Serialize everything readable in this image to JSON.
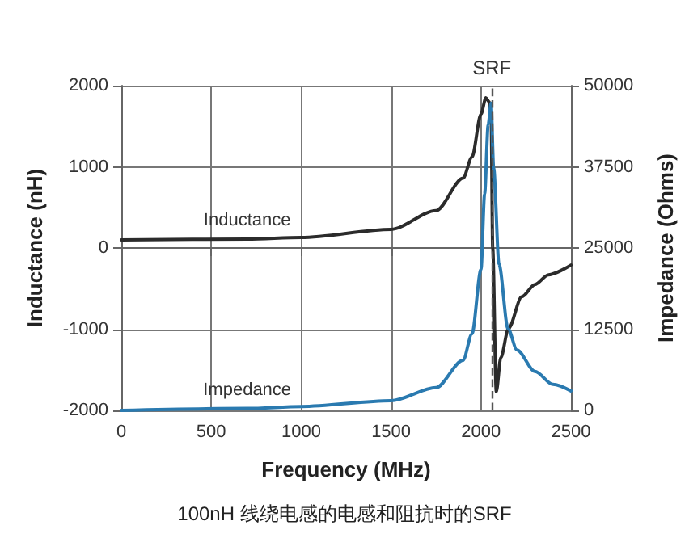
{
  "chart_data": {
    "type": "line",
    "title": "100nH 线绕电感的电感和阻抗时的SRF",
    "xlabel": "Frequency (MHz)",
    "ylabel": "Inductance (nH)",
    "y2label": "Impedance (Ohms)",
    "xlim": [
      0,
      2500
    ],
    "xticks": [
      0,
      500,
      1000,
      1500,
      2000,
      2500
    ],
    "ylim": [
      -2000,
      2000
    ],
    "yticks": [
      -2000,
      -1000,
      0,
      1000,
      2000
    ],
    "y2lim": [
      0,
      50000
    ],
    "y2ticks": [
      0,
      12500,
      25000,
      37500,
      50000
    ],
    "grid": true,
    "legend": false,
    "marker": "none",
    "line_style": "solid",
    "ref_lines": [
      {
        "axis": "x",
        "value": 2060,
        "label": "SRF",
        "line_style": "dashed",
        "color": "#555555"
      }
    ],
    "series": [
      {
        "name": "Inductance",
        "color": "#2b2b2b",
        "x": [
          0,
          700,
          1000,
          1500,
          1750,
          1900,
          1950,
          2000,
          2027,
          2045,
          2056,
          2065,
          2085,
          2110,
          2153,
          2227,
          2300,
          2375,
          2500
        ],
        "values": [
          100,
          110,
          130,
          230,
          460,
          860,
          1120,
          1650,
          1850,
          1800,
          1650,
          0,
          -1770,
          -1350,
          -990,
          -600,
          -450,
          -330,
          -210
        ]
      },
      {
        "name": "Impedance",
        "color": "#2a7ab0",
        "axis": "y2",
        "x": [
          0,
          700,
          1000,
          1500,
          1750,
          1900,
          1950,
          2000,
          2020,
          2040,
          2056,
          2070,
          2100,
          2150,
          2200,
          2300,
          2400,
          2500
        ],
        "values": [
          0,
          300,
          600,
          1500,
          3500,
          7700,
          11800,
          21700,
          33300,
          44000,
          47300,
          37400,
          22500,
          12600,
          9300,
          6000,
          4000,
          3000
        ]
      }
    ]
  }
}
